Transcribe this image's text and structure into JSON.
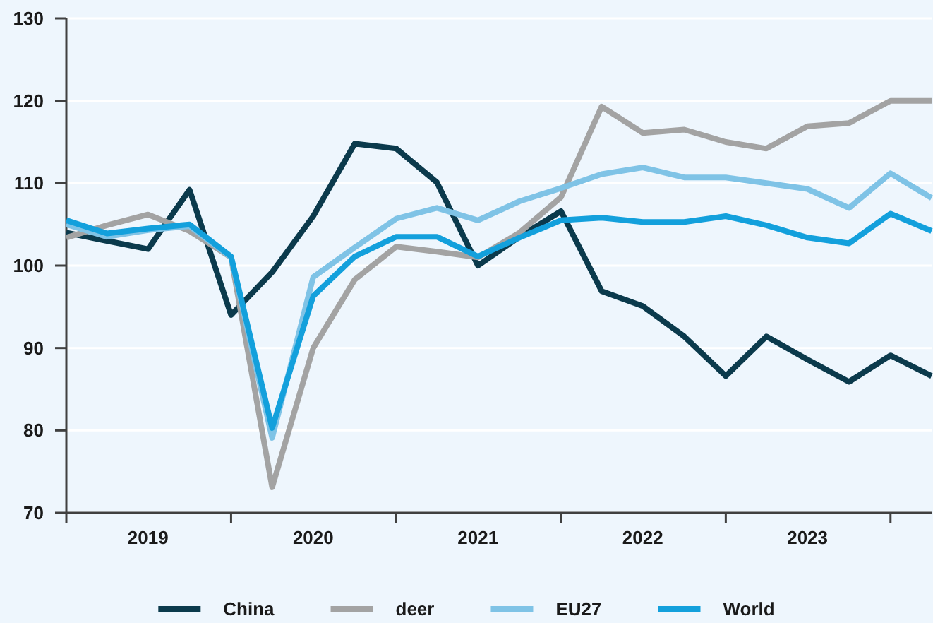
{
  "chart_data": {
    "type": "line",
    "x": [
      "2019-01",
      "2019-04",
      "2019-07",
      "2019-10",
      "2020-01",
      "2020-04",
      "2020-07",
      "2020-10",
      "2021-01",
      "2021-04",
      "2021-07",
      "2021-10",
      "2022-01",
      "2022-04",
      "2022-07",
      "2022-10",
      "2023-01",
      "2023-04",
      "2023-07",
      "2023-10",
      "2024-01",
      "2024-04"
    ],
    "series": [
      {
        "name": "China",
        "color": "#0b3a4c",
        "values": [
          104,
          103,
          102,
          109.2,
          94,
          99.2,
          106,
          114.8,
          114.2,
          110.1,
          100,
          103.5,
          106.6,
          96.9,
          95.1,
          91.4,
          86.6,
          91.4,
          88.6,
          85.9,
          89.1,
          86.6
        ]
      },
      {
        "name": "deer",
        "color": "#a3a3a3",
        "values": [
          103.4,
          104.9,
          106.2,
          104.2,
          101,
          73.1,
          90,
          98.3,
          102.3,
          101.7,
          101,
          104,
          108.3,
          119.3,
          116.1,
          116.5,
          115,
          114.2,
          116.9,
          117.3,
          120,
          120
        ]
      },
      {
        "name": "EU27",
        "color": "#7fc3e6",
        "values": [
          105,
          103.5,
          104.3,
          104.8,
          101,
          79.1,
          98.6,
          102.2,
          105.7,
          107,
          105.5,
          107.8,
          109.4,
          111.1,
          111.9,
          110.7,
          110.7,
          110,
          109.3,
          107,
          111.2,
          108.2
        ]
      },
      {
        "name": "World",
        "color": "#13a0dc",
        "values": [
          105.5,
          103.9,
          104.5,
          105,
          101.1,
          80.3,
          96.3,
          101.1,
          103.5,
          103.5,
          101.1,
          103.4,
          105.5,
          105.8,
          105.3,
          105.3,
          106,
          104.9,
          103.4,
          102.7,
          106.3,
          104.2
        ]
      }
    ],
    "xlim": [
      "2019-01",
      "2024-04"
    ],
    "xticks": [
      {
        "value": "2019-01",
        "label": null
      },
      {
        "value": "2019-07",
        "label": "2019"
      },
      {
        "value": "2020-01",
        "label": null
      },
      {
        "value": "2020-07",
        "label": "2020"
      },
      {
        "value": "2021-01",
        "label": null
      },
      {
        "value": "2021-07",
        "label": "2021"
      },
      {
        "value": "2022-01",
        "label": null
      },
      {
        "value": "2022-07",
        "label": "2022"
      },
      {
        "value": "2023-01",
        "label": null
      },
      {
        "value": "2023-07",
        "label": "2023"
      },
      {
        "value": "2024-01",
        "label": null
      }
    ],
    "ylim": [
      70,
      130
    ],
    "yticks": [
      70,
      80,
      90,
      100,
      110,
      120,
      130
    ],
    "grid": "y",
    "legend": "bottom"
  }
}
